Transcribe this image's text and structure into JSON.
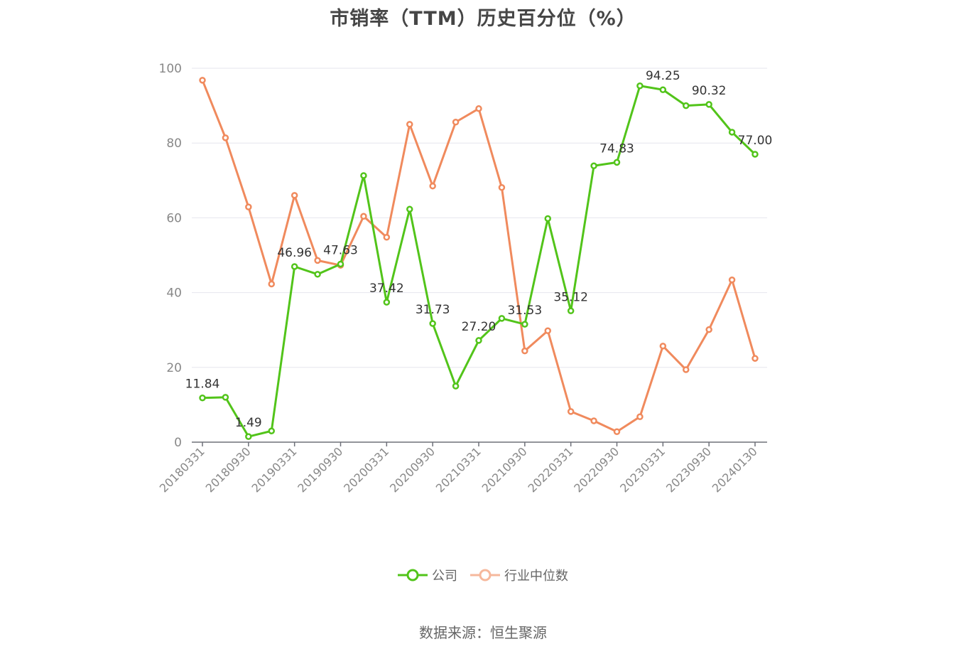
{
  "chart_data": {
    "type": "line",
    "title": "市销率（TTM）历史百分位（%）",
    "x": [
      "20180331",
      "20180630",
      "20180930",
      "20181231",
      "20190331",
      "20190630",
      "20190930",
      "20191231",
      "20200331",
      "20200630",
      "20200930",
      "20201231",
      "20210331",
      "20210630",
      "20210930",
      "20211231",
      "20220331",
      "20220630",
      "20220930",
      "20221231",
      "20230331",
      "20230630",
      "20230930",
      "20231231",
      "20240130"
    ],
    "x_tick_labels": [
      "20180331",
      "20180930",
      "20190331",
      "20190930",
      "20200331",
      "20200930",
      "20210331",
      "20210930",
      "20220331",
      "20220930",
      "20230331",
      "20230930",
      "20240130"
    ],
    "ylim": [
      0,
      100
    ],
    "y_ticks": [
      "0",
      "20",
      "40",
      "60",
      "80",
      "100"
    ],
    "grid": true,
    "legend_position": "bottom",
    "series": [
      {
        "name": "公司",
        "color": "#52c41a",
        "values": [
          11.84,
          12.0,
          1.49,
          3.0,
          46.96,
          44.9,
          47.63,
          71.3,
          37.42,
          62.3,
          31.73,
          15.0,
          27.2,
          33.1,
          31.53,
          59.8,
          35.12,
          73.9,
          74.83,
          95.3,
          94.25,
          90.0,
          90.32,
          82.9,
          77.0
        ],
        "labels": [
          "11.84",
          "",
          "1.49",
          "",
          "46.96",
          "",
          "47.63",
          "",
          "37.42",
          "",
          "31.73",
          "",
          "27.20",
          "",
          "31.53",
          "",
          "35.12",
          "",
          "74.83",
          "",
          "94.25",
          "",
          "90.32",
          "",
          "77.00"
        ]
      },
      {
        "name": "行业中位数",
        "color": "#f08a5d",
        "values": [
          96.8,
          81.4,
          62.9,
          42.3,
          66.0,
          48.6,
          47.3,
          60.4,
          54.8,
          85.0,
          68.5,
          85.6,
          89.2,
          68.1,
          24.4,
          29.8,
          8.2,
          5.7,
          2.8,
          6.8,
          25.7,
          19.4,
          30.1,
          43.4,
          22.4
        ]
      }
    ]
  },
  "source_text": "数据来源：恒生聚源"
}
